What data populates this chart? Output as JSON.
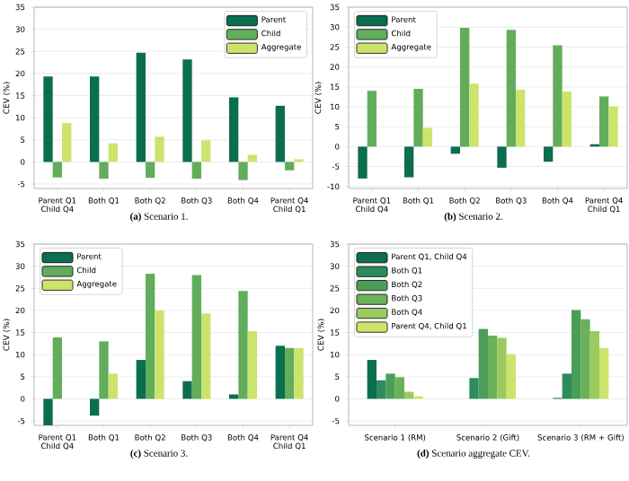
{
  "chart_data": [
    {
      "type": "bar",
      "annotations": [
        "**(a)** Scenario 1."
      ],
      "ylabel": "CEV (%)",
      "categories": [
        "Parent Q1 Child Q4",
        "Both Q1",
        "Both Q2",
        "Both Q3",
        "Both Q4",
        "Parent Q4 Child Q1"
      ],
      "series": [
        {
          "name": "Parent",
          "color": "#0b6e4f",
          "values": [
            19.3,
            19.3,
            24.7,
            23.2,
            14.6,
            12.7
          ]
        },
        {
          "name": "Child",
          "color": "#62ad5c",
          "values": [
            -3.5,
            -3.8,
            -3.6,
            -3.8,
            -4.1,
            -1.9
          ]
        },
        {
          "name": "Aggregate",
          "color": "#cce46c",
          "values": [
            8.8,
            4.2,
            5.7,
            4.9,
            1.6,
            0.6
          ]
        }
      ],
      "ylim": [
        -6,
        35
      ],
      "yticks": [
        -5,
        0,
        5,
        10,
        15,
        20,
        25,
        30,
        35
      ],
      "grid": "y",
      "legend": "top right"
    },
    {
      "type": "bar",
      "annotations": [
        "**(b)** Scenario 2."
      ],
      "ylabel": "CEV (%)",
      "categories": [
        "Parent Q1 Child Q4",
        "Both Q1",
        "Both Q2",
        "Both Q3",
        "Both Q4",
        "Parent Q4 Child Q1"
      ],
      "series": [
        {
          "name": "Parent",
          "color": "#0b6e4f",
          "values": [
            -8.0,
            -7.7,
            -1.8,
            -5.3,
            -3.8,
            0.6
          ]
        },
        {
          "name": "Child",
          "color": "#62ad5c",
          "values": [
            14.0,
            14.5,
            29.8,
            29.3,
            25.4,
            12.6
          ]
        },
        {
          "name": "Aggregate",
          "color": "#cce46c",
          "values": [
            null,
            4.7,
            15.8,
            14.3,
            13.8,
            10.1
          ]
        }
      ],
      "ylim": [
        -10.5,
        35
      ],
      "yticks": [
        -10,
        -5,
        0,
        5,
        10,
        15,
        20,
        25,
        30,
        35
      ],
      "grid": "y",
      "legend": "top left"
    },
    {
      "type": "bar",
      "annotations": [
        "**(c)** Scenario 3."
      ],
      "ylabel": "CEV (%)",
      "categories": [
        "Parent Q1 Child Q4",
        "Both Q1",
        "Both Q2",
        "Both Q3",
        "Both Q4",
        "Parent Q4 Child Q1"
      ],
      "series": [
        {
          "name": "Parent",
          "color": "#0b6e4f",
          "values": [
            -6.0,
            -3.8,
            8.8,
            4.0,
            1.0,
            12.0
          ]
        },
        {
          "name": "Child",
          "color": "#62ad5c",
          "values": [
            13.9,
            13.0,
            28.3,
            28.0,
            24.4,
            11.5
          ]
        },
        {
          "name": "Aggregate",
          "color": "#cce46c",
          "values": [
            null,
            5.7,
            20.0,
            19.3,
            15.3,
            11.5
          ]
        }
      ],
      "ylim": [
        -6,
        35
      ],
      "yticks": [
        -5,
        0,
        5,
        10,
        15,
        20,
        25,
        30,
        35
      ],
      "grid": "y",
      "legend": "top left"
    },
    {
      "type": "bar",
      "annotations": [
        "**(d)** Scenario aggregate CEV."
      ],
      "ylabel": "CEV (%)",
      "categories": [
        "Scenario 1 (RM)",
        "Scenario 2 (Gift)",
        "Scenario 3 (RM + Gift)"
      ],
      "series": [
        {
          "name": "Parent Q1, Child Q4",
          "color": "#0b6e4f",
          "values": [
            8.8,
            null,
            0.2
          ]
        },
        {
          "name": "Both Q1",
          "color": "#2e8b5c",
          "values": [
            4.2,
            4.7,
            5.7
          ]
        },
        {
          "name": "Both Q2",
          "color": "#4a9e58",
          "values": [
            5.7,
            15.8,
            20.1
          ]
        },
        {
          "name": "Both Q3",
          "color": "#6cb159",
          "values": [
            4.9,
            14.3,
            18.0
          ]
        },
        {
          "name": "Both Q4",
          "color": "#9acb5e",
          "values": [
            1.6,
            13.8,
            15.3
          ]
        },
        {
          "name": "Parent Q4, Child Q1",
          "color": "#cce46c",
          "values": [
            0.6,
            10.1,
            11.5
          ]
        }
      ],
      "ylim": [
        -6,
        35
      ],
      "yticks": [
        -5,
        0,
        5,
        10,
        15,
        20,
        25,
        30,
        35
      ],
      "grid": "y",
      "legend": "top left"
    }
  ]
}
